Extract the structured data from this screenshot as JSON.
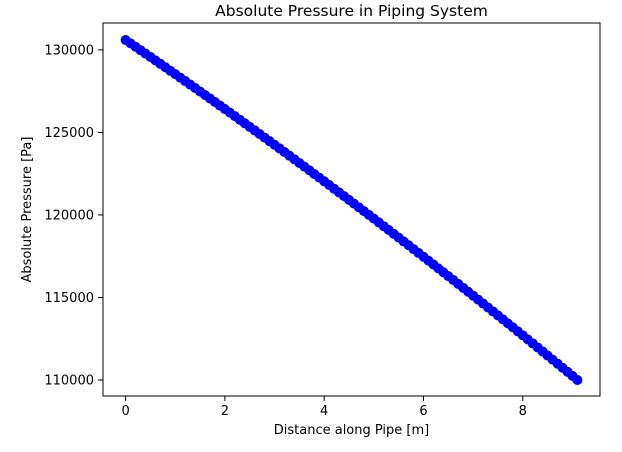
{
  "chart_data": {
    "type": "scatter",
    "title": "Absolute Pressure in Piping System",
    "xlabel": "Distance along Pipe [m]",
    "ylabel": "Absolute Pressure [Pa]",
    "xlim": [
      -0.455,
      9.555
    ],
    "ylim": [
      109030,
      131630
    ],
    "xticks": [
      0,
      2,
      4,
      6,
      8
    ],
    "yticks": [
      110000,
      115000,
      120000,
      125000,
      130000
    ],
    "xtick_labels": [
      "0",
      "2",
      "4",
      "6",
      "8"
    ],
    "ytick_labels": [
      "110000",
      "115000",
      "120000",
      "125000",
      "130000"
    ],
    "grid": false,
    "color": "#0000ff",
    "series": [
      {
        "marker": "circle",
        "x_start": 0,
        "x_end": 9.1,
        "n_points": 92,
        "y_start": 130600,
        "y_end": 110000,
        "curvature": 500
      }
    ]
  }
}
